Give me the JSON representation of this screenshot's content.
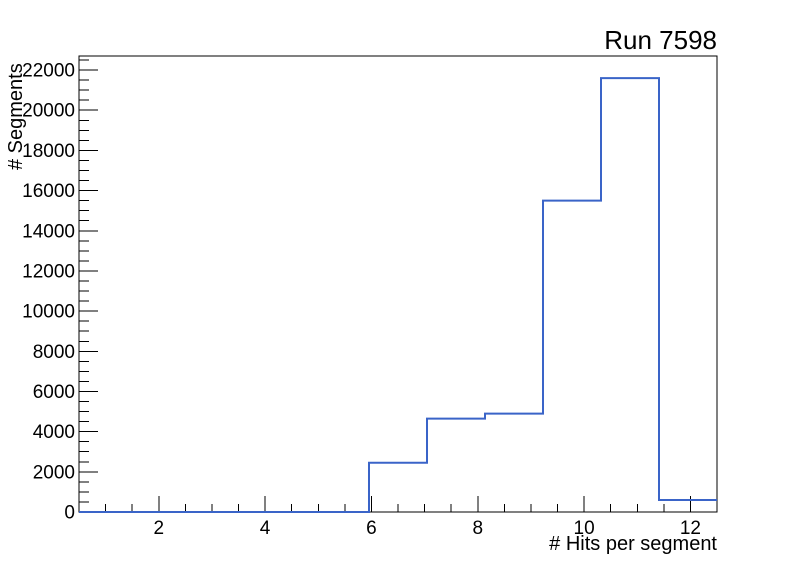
{
  "page": {
    "background": "#ffffff"
  },
  "chart_data": {
    "type": "bar",
    "subtype": "step-histogram",
    "title": "Run 7598",
    "xlabel": "# Hits per segment",
    "ylabel": "# Segments",
    "xlim": [
      0.5,
      12.5
    ],
    "ylim": [
      0,
      22700
    ],
    "bin_edges": [
      0.5,
      1.5909,
      2.6818,
      3.7727,
      4.8636,
      5.9545,
      7.0455,
      8.1364,
      9.2273,
      10.3182,
      11.4091,
      12.5
    ],
    "values": [
      0,
      0,
      0,
      0,
      0,
      2450,
      4650,
      4900,
      15500,
      21600,
      600
    ],
    "x_major_ticks": [
      2,
      4,
      6,
      8,
      10,
      12
    ],
    "x_minor_tick_step": 0.5,
    "y_major_ticks": [
      0,
      2000,
      4000,
      6000,
      8000,
      10000,
      12000,
      14000,
      16000,
      18000,
      20000,
      22000
    ],
    "y_minor_tick_step": 500,
    "grid": false,
    "legend": "none",
    "line_color": "#3a64c8",
    "axis_color": "#000000",
    "text_color": "#000000"
  }
}
